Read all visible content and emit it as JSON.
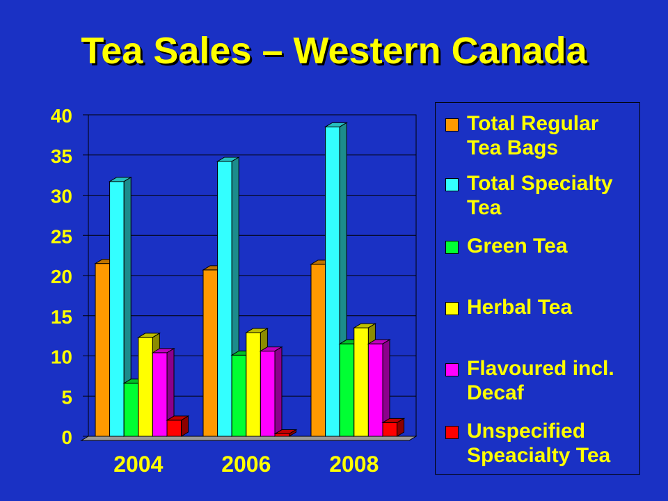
{
  "title": "Tea Sales – Western Canada",
  "colors": {
    "background": "#1a31c4",
    "text": "#ffff00"
  },
  "chart_data": {
    "type": "bar",
    "title": "Tea Sales – Western Canada",
    "xlabel": "",
    "ylabel": "",
    "ylim": [
      0,
      40
    ],
    "yticks": [
      "0",
      "5",
      "10",
      "15",
      "20",
      "25",
      "30",
      "35",
      "40"
    ],
    "grid": true,
    "legend_position": "right",
    "categories": [
      "2004",
      "2006",
      "2008"
    ],
    "series": [
      {
        "name": "Total Regular Tea Bags",
        "color": "#ff9900",
        "values": [
          21.5,
          20.7,
          21.4
        ]
      },
      {
        "name": "Total Specialty Tea",
        "color": "#33ffff",
        "values": [
          31.7,
          34.2,
          38.5
        ]
      },
      {
        "name": "Green Tea",
        "color": "#00ff33",
        "values": [
          6.6,
          10.1,
          11.5
        ]
      },
      {
        "name": "Herbal Tea",
        "color": "#ffff00",
        "values": [
          12.3,
          12.9,
          13.5
        ]
      },
      {
        "name": "Flavoured incl. Decaf",
        "color": "#ff00ff",
        "values": [
          10.4,
          10.6,
          11.5
        ]
      },
      {
        "name": "Unspecified Speacialty Tea",
        "color": "#ff0000",
        "values": [
          2.0,
          0.3,
          1.7
        ]
      }
    ]
  },
  "legend": {
    "items": [
      {
        "label_line1": "Total Regular",
        "label_line2": "Tea Bags"
      },
      {
        "label_line1": "Total Specialty",
        "label_line2": "Tea"
      },
      {
        "label_line1": "Green Tea",
        "label_line2": ""
      },
      {
        "label_line1": "Herbal Tea",
        "label_line2": ""
      },
      {
        "label_line1": "Flavoured incl.",
        "label_line2": "Decaf"
      },
      {
        "label_line1": "Unspecified",
        "label_line2": "Speacialty Tea"
      }
    ]
  }
}
